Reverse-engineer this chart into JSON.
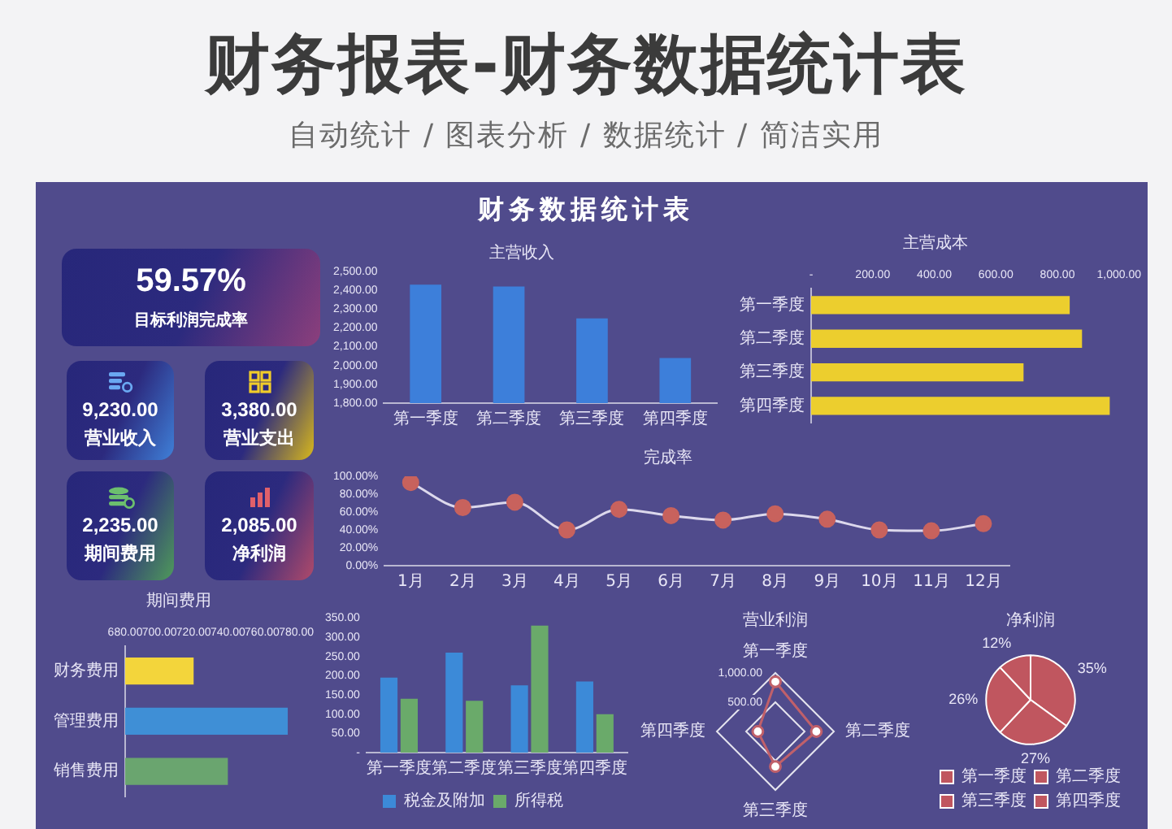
{
  "chart_data": [
    {
      "type": "other",
      "title": "财务报表-财务数据统计表",
      "subtitle": "自动统计 / 图表分析 / 数据统计 / 简洁实用",
      "annotations": [
        "财务数据统计表"
      ]
    },
    {
      "type": "other",
      "annotations": [
        "59.57%",
        "目标利润完成率",
        "9,230.00",
        "营业收入",
        "3,380.00",
        "营业支出",
        "2,235.00",
        "期间费用",
        "2,085.00",
        "净利润"
      ]
    },
    {
      "type": "bar",
      "title": "主营收入",
      "categories": [
        "第一季度",
        "第二季度",
        "第三季度",
        "第四季度"
      ],
      "values": [
        2430,
        2420,
        2250,
        2040
      ],
      "color": "#3d7fda",
      "ylim": [
        1800,
        2500
      ],
      "yticks": [
        {
          "value": 1800,
          "label": "1,800.00"
        },
        {
          "value": 1900,
          "label": "1,900.00"
        },
        {
          "value": 2000,
          "label": "2,000.00"
        },
        {
          "value": 2100,
          "label": "2,100.00"
        },
        {
          "value": 2200,
          "label": "2,200.00"
        },
        {
          "value": 2300,
          "label": "2,300.00"
        },
        {
          "value": 2400,
          "label": "2,400.00"
        },
        {
          "value": 2500,
          "label": "2,500.00"
        }
      ]
    },
    {
      "type": "bar",
      "orientation": "horizontal",
      "title": "主营成本",
      "categories": [
        "第一季度",
        "第二季度",
        "第三季度",
        "第四季度"
      ],
      "values": [
        840,
        880,
        690,
        970
      ],
      "color": "#ecce2e",
      "xlim": [
        0,
        1000
      ],
      "xticks": [
        {
          "value": 0,
          "label": "-"
        },
        {
          "value": 200,
          "label": "200.00"
        },
        {
          "value": 400,
          "label": "400.00"
        },
        {
          "value": 600,
          "label": "600.00"
        },
        {
          "value": 800,
          "label": "800.00"
        },
        {
          "value": 1000,
          "label": "1,000.00"
        }
      ]
    },
    {
      "type": "line",
      "title": "完成率",
      "categories": [
        "1月",
        "2月",
        "3月",
        "4月",
        "5月",
        "6月",
        "7月",
        "8月",
        "9月",
        "10月",
        "11月",
        "12月"
      ],
      "values": [
        93,
        65,
        71,
        40,
        63,
        56,
        51,
        58,
        52,
        40,
        39,
        47
      ],
      "color": "#dcd8ec",
      "colors": [
        "#c8625d",
        "#c8625d",
        "#c8625d",
        "#c8625d",
        "#c8625d",
        "#c8625d",
        "#c8625d",
        "#c8625d",
        "#c8625d",
        "#c8625d",
        "#c8625d",
        "#c8625d"
      ],
      "marker": "circle",
      "ylim": [
        0,
        100
      ],
      "yticks": [
        {
          "value": 0,
          "label": "0.00%"
        },
        {
          "value": 20,
          "label": "20.00%"
        },
        {
          "value": 40,
          "label": "40.00%"
        },
        {
          "value": 60,
          "label": "60.00%"
        },
        {
          "value": 80,
          "label": "80.00%"
        },
        {
          "value": 100,
          "label": "100.00%"
        }
      ]
    },
    {
      "type": "bar",
      "orientation": "horizontal",
      "title": "期间费用",
      "categories": [
        "财务费用",
        "管理费用",
        "销售费用"
      ],
      "values": [
        720,
        775,
        740
      ],
      "colors": [
        "#f3d53b",
        "#3f8fd6",
        "#6aa56f"
      ],
      "xlim": [
        680,
        780
      ],
      "xticks": [
        {
          "value": 680,
          "label": "680.00"
        },
        {
          "value": 700,
          "label": "700.00"
        },
        {
          "value": 720,
          "label": "720.00"
        },
        {
          "value": 740,
          "label": "740.00"
        },
        {
          "value": 760,
          "label": "760.00"
        },
        {
          "value": 780,
          "label": "780.00"
        }
      ]
    },
    {
      "type": "bar",
      "categories": [
        "第一季度",
        "第二季度",
        "第三季度",
        "第四季度"
      ],
      "series": [
        {
          "name": "税金及附加",
          "color": "#3c8ad8",
          "values": [
            195,
            260,
            175,
            185
          ]
        },
        {
          "name": "所得税",
          "color": "#6aaa6a",
          "values": [
            140,
            135,
            330,
            100
          ]
        }
      ],
      "ylim": [
        0,
        350
      ],
      "yticks": [
        {
          "value": 0,
          "label": "-"
        },
        {
          "value": 50,
          "label": "50.00"
        },
        {
          "value": 100,
          "label": "100.00"
        },
        {
          "value": 150,
          "label": "150.00"
        },
        {
          "value": 200,
          "label": "200.00"
        },
        {
          "value": 250,
          "label": "250.00"
        },
        {
          "value": 300,
          "label": "300.00"
        },
        {
          "value": 350,
          "label": "350.00"
        }
      ],
      "legend": "bottom"
    },
    {
      "type": "radar",
      "title": "营业利润",
      "categories": [
        "第一季度",
        "第二季度",
        "第三季度",
        "第四季度"
      ],
      "series": [
        {
          "color": "#c0606a",
          "values": [
            850,
            700,
            600,
            300
          ]
        }
      ],
      "marker": "circle",
      "ylim": [
        0,
        1000
      ],
      "yticks": [
        {
          "value": 500,
          "label": "500.00"
        },
        {
          "value": 1000,
          "label": "1,000.00"
        }
      ]
    },
    {
      "type": "pie",
      "title": "净利润",
      "categories": [
        "第一季度",
        "第二季度",
        "第三季度",
        "第四季度"
      ],
      "values": [
        35,
        27,
        26,
        12
      ],
      "colors": [
        "#c0565f",
        "#c0565f",
        "#c0565f",
        "#c0565f"
      ],
      "value_labels": [
        "35%",
        "27%",
        "26%",
        "12%"
      ],
      "legend": "bottom"
    }
  ]
}
